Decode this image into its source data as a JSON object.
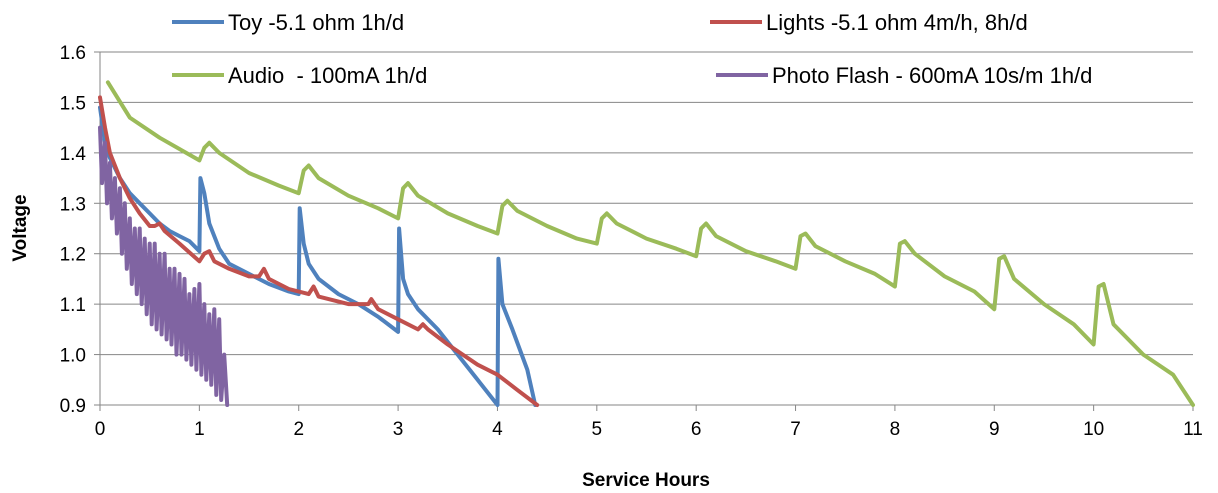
{
  "chart_data": {
    "type": "line",
    "title": "",
    "xlabel": "Service Hours",
    "ylabel": "Voltage",
    "xlim": [
      0,
      11
    ],
    "ylim": [
      0.9,
      1.6
    ],
    "x_ticks": [
      0,
      1,
      2,
      3,
      4,
      5,
      6,
      7,
      8,
      9,
      10,
      11
    ],
    "y_ticks": [
      "0.9",
      "1.0",
      "1.1",
      "1.2",
      "1.3",
      "1.4",
      "1.5",
      "1.6"
    ],
    "grid": "horizontal",
    "legend_position": "top",
    "series": [
      {
        "name": "Toy -5.1 ohm 1h/d",
        "color": "#4F81BD",
        "x": [
          0,
          0.05,
          0.1,
          0.2,
          0.3,
          0.4,
          0.5,
          0.6,
          0.7,
          0.8,
          0.9,
          1.0,
          1.01,
          1.05,
          1.1,
          1.2,
          1.3,
          1.5,
          1.7,
          1.9,
          2.0,
          2.01,
          2.05,
          2.1,
          2.2,
          2.4,
          2.6,
          2.8,
          3.0,
          3.01,
          3.05,
          3.1,
          3.2,
          3.4,
          3.6,
          3.8,
          4.0,
          4.01,
          4.05,
          4.15,
          4.3,
          4.38
        ],
        "values": [
          1.49,
          1.42,
          1.39,
          1.35,
          1.32,
          1.3,
          1.28,
          1.26,
          1.245,
          1.235,
          1.225,
          1.205,
          1.35,
          1.32,
          1.26,
          1.21,
          1.18,
          1.16,
          1.14,
          1.125,
          1.12,
          1.29,
          1.22,
          1.18,
          1.15,
          1.12,
          1.1,
          1.075,
          1.045,
          1.25,
          1.15,
          1.12,
          1.09,
          1.05,
          1.0,
          0.95,
          0.9,
          1.19,
          1.1,
          1.05,
          0.97,
          0.9
        ]
      },
      {
        "name": "Lights -5.1 ohm 4m/h, 8h/d",
        "color": "#C0504D",
        "x": [
          0,
          0.05,
          0.1,
          0.2,
          0.3,
          0.4,
          0.5,
          0.55,
          0.6,
          0.65,
          0.8,
          1.0,
          1.05,
          1.1,
          1.15,
          1.3,
          1.5,
          1.6,
          1.65,
          1.7,
          1.9,
          2.1,
          2.15,
          2.2,
          2.5,
          2.7,
          2.73,
          2.8,
          3.0,
          3.2,
          3.25,
          3.3,
          3.5,
          3.8,
          4.0,
          4.2,
          4.4
        ],
        "values": [
          1.51,
          1.45,
          1.4,
          1.35,
          1.31,
          1.28,
          1.255,
          1.255,
          1.26,
          1.245,
          1.22,
          1.185,
          1.2,
          1.205,
          1.185,
          1.17,
          1.155,
          1.155,
          1.17,
          1.15,
          1.13,
          1.12,
          1.135,
          1.115,
          1.1,
          1.1,
          1.11,
          1.09,
          1.07,
          1.05,
          1.06,
          1.05,
          1.02,
          0.98,
          0.96,
          0.93,
          0.9
        ]
      },
      {
        "name": "Audio  - 100mA 1h/d",
        "color": "#9BBB59",
        "x": [
          0.08,
          0.3,
          0.6,
          1.0,
          1.05,
          1.1,
          1.2,
          1.5,
          1.8,
          2.0,
          2.05,
          2.1,
          2.2,
          2.5,
          2.8,
          3.0,
          3.05,
          3.1,
          3.2,
          3.5,
          3.8,
          4.0,
          4.05,
          4.1,
          4.2,
          4.5,
          4.8,
          5.0,
          5.05,
          5.1,
          5.2,
          5.5,
          5.8,
          6.0,
          6.05,
          6.1,
          6.2,
          6.5,
          6.8,
          7.0,
          7.05,
          7.1,
          7.2,
          7.5,
          7.8,
          8.0,
          8.05,
          8.1,
          8.2,
          8.5,
          8.8,
          9.0,
          9.05,
          9.1,
          9.2,
          9.5,
          9.8,
          10.0,
          10.05,
          10.1,
          10.2,
          10.5,
          10.8,
          11.0
        ],
        "values": [
          1.54,
          1.47,
          1.43,
          1.385,
          1.41,
          1.42,
          1.4,
          1.36,
          1.335,
          1.32,
          1.365,
          1.375,
          1.35,
          1.315,
          1.29,
          1.27,
          1.33,
          1.34,
          1.315,
          1.28,
          1.255,
          1.24,
          1.295,
          1.305,
          1.285,
          1.255,
          1.23,
          1.22,
          1.27,
          1.28,
          1.26,
          1.23,
          1.21,
          1.195,
          1.25,
          1.26,
          1.235,
          1.205,
          1.185,
          1.17,
          1.235,
          1.24,
          1.215,
          1.185,
          1.16,
          1.135,
          1.22,
          1.225,
          1.2,
          1.155,
          1.125,
          1.09,
          1.19,
          1.195,
          1.15,
          1.1,
          1.06,
          1.02,
          1.135,
          1.14,
          1.06,
          1.0,
          0.96,
          0.9
        ]
      },
      {
        "name": "Photo Flash - 600mA 10s/m 1h/d",
        "color": "#8064A2",
        "x": [
          0,
          0.02,
          0.05,
          0.07,
          0.1,
          0.12,
          0.15,
          0.17,
          0.2,
          0.22,
          0.25,
          0.27,
          0.3,
          0.32,
          0.35,
          0.37,
          0.4,
          0.42,
          0.45,
          0.47,
          0.5,
          0.52,
          0.55,
          0.57,
          0.6,
          0.62,
          0.65,
          0.67,
          0.7,
          0.72,
          0.75,
          0.77,
          0.8,
          0.82,
          0.85,
          0.87,
          0.9,
          0.92,
          0.95,
          0.97,
          1.0,
          1.02,
          1.05,
          1.07,
          1.1,
          1.12,
          1.15,
          1.17,
          1.2,
          1.22,
          1.25,
          1.28
        ],
        "values": [
          1.45,
          1.34,
          1.42,
          1.3,
          1.38,
          1.27,
          1.35,
          1.24,
          1.33,
          1.2,
          1.3,
          1.17,
          1.27,
          1.14,
          1.25,
          1.12,
          1.25,
          1.1,
          1.23,
          1.08,
          1.22,
          1.06,
          1.22,
          1.05,
          1.2,
          1.04,
          1.2,
          1.03,
          1.17,
          1.02,
          1.17,
          1.0,
          1.16,
          1.0,
          1.15,
          0.99,
          1.12,
          0.98,
          1.13,
          0.97,
          1.14,
          0.96,
          1.1,
          0.95,
          1.08,
          0.94,
          1.09,
          0.92,
          1.07,
          0.91,
          1.0,
          0.9
        ]
      }
    ]
  }
}
